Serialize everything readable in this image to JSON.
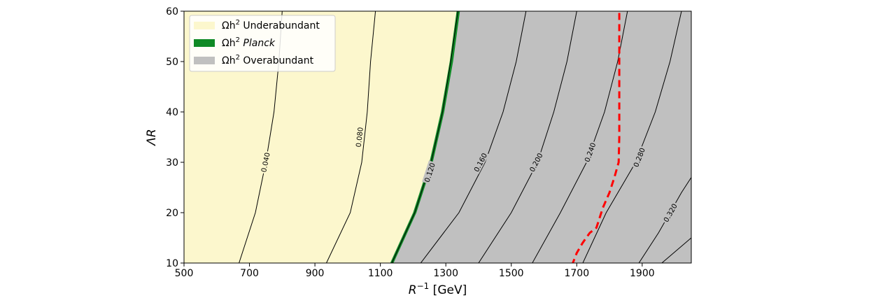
{
  "chart_data": {
    "type": "contour",
    "xlabel": "R",
    "xlabel_sup": "−1",
    "xlabel_unit": " [GeV]",
    "ylabel": "ΛR",
    "xlim": [
      500,
      2050
    ],
    "ylim": [
      10,
      60
    ],
    "xticks": [
      500,
      700,
      900,
      1100,
      1300,
      1500,
      1700,
      1900
    ],
    "yticks": [
      10,
      20,
      30,
      40,
      50,
      60
    ],
    "legend_position": "upper-left",
    "legend": [
      {
        "key": "under",
        "prefix": "Ωh",
        "sup": "2",
        "label": " Underabundant",
        "italic": false,
        "color": "#fcf7cd"
      },
      {
        "key": "planck",
        "prefix": "Ωh",
        "sup": "2",
        "label": " Planck",
        "italic": true,
        "color": "#0f8a25"
      },
      {
        "key": "over",
        "prefix": "Ωh",
        "sup": "2",
        "label": " Overabundant",
        "italic": false,
        "color": "#c0c0c0"
      }
    ],
    "regions": [
      {
        "name": "Underabundant",
        "color": "#fcf7cd"
      },
      {
        "name": "Planck",
        "color": "#0f8a25"
      },
      {
        "name": "Overabundant",
        "color": "#c0c0c0"
      }
    ],
    "contours": [
      {
        "level": "0.040",
        "points": [
          [
            668,
            10
          ],
          [
            718,
            20
          ],
          [
            750,
            30
          ],
          [
            775,
            40
          ],
          [
            790,
            50
          ],
          [
            800,
            60
          ]
        ],
        "label_at": [
          748,
          30
        ]
      },
      {
        "level": "0.080",
        "points": [
          [
            935,
            10
          ],
          [
            1008,
            20
          ],
          [
            1043,
            30
          ],
          [
            1060,
            40
          ],
          [
            1070,
            50
          ],
          [
            1085,
            60
          ]
        ],
        "label_at": [
          1035,
          35
        ]
      },
      {
        "level": "0.120",
        "points": [
          [
            1135,
            10
          ],
          [
            1205,
            20
          ],
          [
            1255,
            30
          ],
          [
            1290,
            40
          ],
          [
            1315,
            50
          ],
          [
            1337,
            60
          ]
        ],
        "label_at": [
          1250,
          28
        ]
      },
      {
        "level": "0.160",
        "points": [
          [
            1200,
            8
          ],
          [
            1340,
            20
          ],
          [
            1420,
            30
          ],
          [
            1475,
            40
          ],
          [
            1515,
            50
          ],
          [
            1545,
            60
          ]
        ],
        "label_at": [
          1405,
          30
        ]
      },
      {
        "level": "0.200",
        "points": [
          [
            1360,
            6
          ],
          [
            1500,
            20
          ],
          [
            1580,
            30
          ],
          [
            1630,
            40
          ],
          [
            1670,
            50
          ],
          [
            1700,
            60
          ]
        ],
        "label_at": [
          1575,
          30
        ]
      },
      {
        "level": "0.240",
        "points": [
          [
            1530,
            6
          ],
          [
            1650,
            20
          ],
          [
            1730,
            30
          ],
          [
            1785,
            40
          ],
          [
            1825,
            50
          ],
          [
            1855,
            60
          ]
        ],
        "label_at": [
          1740,
          32
        ]
      },
      {
        "level": "0.280",
        "points": [
          [
            1690,
            6
          ],
          [
            1790,
            20
          ],
          [
            1880,
            30
          ],
          [
            1940,
            40
          ],
          [
            1985,
            50
          ],
          [
            2020,
            60
          ]
        ],
        "label_at": [
          1890,
          31
        ]
      },
      {
        "level": "0.320",
        "points": [
          [
            1860,
            7
          ],
          [
            1950,
            16
          ],
          [
            2020,
            24
          ],
          [
            2050,
            27
          ]
        ],
        "label_at": [
          1985,
          20
        ]
      },
      {
        "level": "",
        "points": [
          [
            1960,
            10
          ],
          [
            2050,
            15
          ]
        ],
        "label_at": null
      }
    ],
    "boundary_line": {
      "color": "#ff0000",
      "points": [
        [
          1685,
          9.5
        ],
        [
          1700,
          12
        ],
        [
          1718,
          14
        ],
        [
          1740,
          16
        ],
        [
          1760,
          17
        ],
        [
          1780,
          21
        ],
        [
          1800,
          24
        ],
        [
          1815,
          27
        ],
        [
          1828,
          30
        ],
        [
          1830,
          35
        ],
        [
          1830,
          40
        ],
        [
          1830,
          50
        ],
        [
          1830,
          60
        ]
      ]
    },
    "planck_band": {
      "left": [
        [
          1130,
          10
        ],
        [
          1200,
          20
        ],
        [
          1250,
          30
        ],
        [
          1285,
          40
        ],
        [
          1312,
          50
        ],
        [
          1333,
          60
        ]
      ],
      "right": [
        [
          1140,
          10
        ],
        [
          1210,
          20
        ],
        [
          1260,
          30
        ],
        [
          1295,
          40
        ],
        [
          1322,
          50
        ],
        [
          1343,
          60
        ]
      ]
    }
  }
}
